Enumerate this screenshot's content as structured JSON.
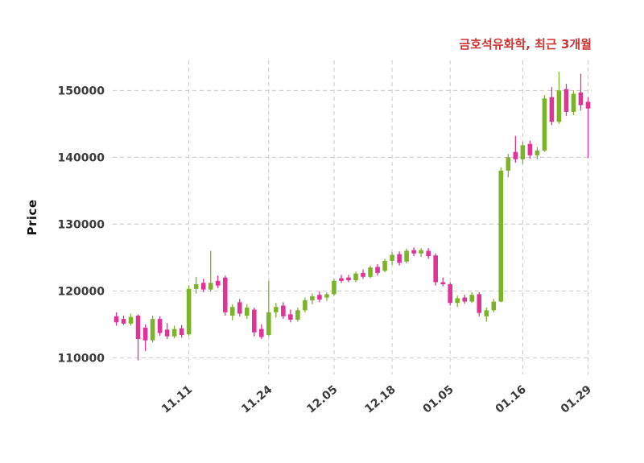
{
  "header": {
    "title": "금호석유화학, 최근 3개월",
    "title_color": "#cc3333"
  },
  "chart_data": {
    "type": "candlestick",
    "title": "금호석유화학, 최근 3개월",
    "xlabel": "",
    "ylabel": "Price",
    "ylim": [
      107500,
      154500
    ],
    "y_ticks": [
      110000,
      120000,
      130000,
      140000,
      150000
    ],
    "x_ticks": [
      {
        "label": "11.11",
        "index": 10
      },
      {
        "label": "11.24",
        "index": 21
      },
      {
        "label": "12.05",
        "index": 30
      },
      {
        "label": "12.18",
        "index": 38
      },
      {
        "label": "01.05",
        "index": 46
      },
      {
        "label": "01.16",
        "index": 56
      },
      {
        "label": "01.29",
        "index": 65
      }
    ],
    "grid": "dashed",
    "legend": "none",
    "colors": {
      "up": "#7db32b",
      "down": "#de3397",
      "grid": "#c9c9c9",
      "tick_text": "#3b3b3b",
      "background": "#ffffff"
    },
    "candles_format": [
      "open",
      "high",
      "low",
      "close"
    ],
    "candles": [
      [
        116200,
        116800,
        114800,
        115300
      ],
      [
        115800,
        116300,
        114900,
        115100
      ],
      [
        115100,
        116600,
        114800,
        116100
      ],
      [
        116300,
        116500,
        109600,
        112800
      ],
      [
        114500,
        115000,
        111000,
        112600
      ],
      [
        112600,
        116300,
        112300,
        115800
      ],
      [
        115800,
        116200,
        113300,
        113700
      ],
      [
        114200,
        115200,
        112800,
        113200
      ],
      [
        113200,
        114800,
        112900,
        114300
      ],
      [
        114400,
        114900,
        113000,
        113400
      ],
      [
        113500,
        120800,
        113300,
        120300
      ],
      [
        120300,
        122100,
        119600,
        121000
      ],
      [
        121200,
        121800,
        119800,
        120200
      ],
      [
        120200,
        126000,
        119900,
        121200
      ],
      [
        121500,
        122300,
        120400,
        120800
      ],
      [
        122000,
        122300,
        116300,
        116800
      ],
      [
        116300,
        118000,
        115600,
        117600
      ],
      [
        118300,
        118800,
        116200,
        116600
      ],
      [
        116300,
        118000,
        115800,
        117500
      ],
      [
        117200,
        117500,
        113200,
        113800
      ],
      [
        114300,
        115000,
        112800,
        113100
      ],
      [
        113400,
        121500,
        113200,
        116800
      ],
      [
        116800,
        118200,
        116000,
        117600
      ],
      [
        117800,
        118300,
        115800,
        116200
      ],
      [
        116500,
        117200,
        115300,
        115700
      ],
      [
        115700,
        117500,
        115400,
        117100
      ],
      [
        117100,
        119000,
        116800,
        118600
      ],
      [
        118600,
        119600,
        118000,
        119200
      ],
      [
        119400,
        119900,
        118300,
        118700
      ],
      [
        119000,
        119800,
        118500,
        119500
      ],
      [
        119500,
        121800,
        119300,
        121500
      ],
      [
        121900,
        122400,
        121200,
        121500
      ],
      [
        122000,
        122400,
        121300,
        121600
      ],
      [
        121600,
        122900,
        121300,
        122600
      ],
      [
        122700,
        123200,
        121800,
        122100
      ],
      [
        122100,
        123800,
        121900,
        123500
      ],
      [
        123600,
        124000,
        122300,
        122700
      ],
      [
        123000,
        124800,
        122800,
        124500
      ],
      [
        124500,
        125800,
        123900,
        125400
      ],
      [
        125500,
        125900,
        123800,
        124200
      ],
      [
        124400,
        126300,
        124100,
        126000
      ],
      [
        126100,
        126500,
        125200,
        125600
      ],
      [
        125600,
        126400,
        125100,
        126100
      ],
      [
        126000,
        126400,
        124800,
        125200
      ],
      [
        125300,
        125600,
        120800,
        121300
      ],
      [
        121300,
        122000,
        120700,
        121000
      ],
      [
        121000,
        121300,
        117800,
        118200
      ],
      [
        118200,
        119300,
        117600,
        118900
      ],
      [
        119000,
        119400,
        118100,
        118400
      ],
      [
        118400,
        119800,
        118200,
        119400
      ],
      [
        119500,
        119800,
        116200,
        116700
      ],
      [
        116200,
        117500,
        115400,
        117100
      ],
      [
        117100,
        118800,
        116800,
        118400
      ],
      [
        118400,
        138500,
        118300,
        138000
      ],
      [
        138000,
        140500,
        137000,
        140000
      ],
      [
        140800,
        143200,
        139200,
        139700
      ],
      [
        139700,
        142300,
        139000,
        141800
      ],
      [
        142000,
        142500,
        139800,
        140300
      ],
      [
        140300,
        141500,
        139700,
        141000
      ],
      [
        141000,
        149300,
        140800,
        148800
      ],
      [
        149000,
        150500,
        144800,
        145300
      ],
      [
        145300,
        152800,
        145000,
        150000
      ],
      [
        150200,
        151000,
        146200,
        146800
      ],
      [
        146800,
        150000,
        146300,
        149500
      ],
      [
        149700,
        152500,
        147000,
        147800
      ],
      [
        148300,
        149000,
        139900,
        147300
      ]
    ]
  }
}
